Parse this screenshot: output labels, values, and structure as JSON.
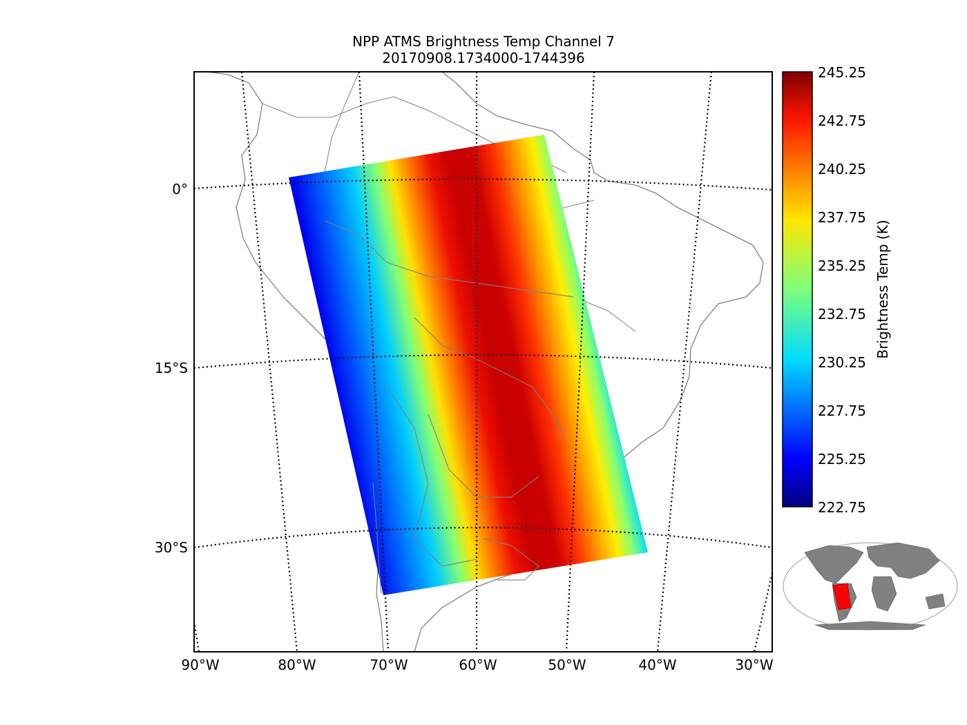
{
  "title": "NPP ATMS Brightness Temp Channel 7",
  "subtitle": "20170908.1734000-1744396",
  "map": {
    "lon_labels": [
      "90°W",
      "80°W",
      "70°W",
      "60°W",
      "50°W",
      "40°W",
      "30°W"
    ],
    "lat_labels": [
      "0°",
      "15°S",
      "30°S"
    ],
    "coastline_color": "#808080",
    "grid_style": "dotted"
  },
  "colorbar": {
    "label": "Brightness Temp (K)",
    "ticks": [
      "245.25",
      "242.75",
      "240.25",
      "237.75",
      "235.25",
      "232.75",
      "230.25",
      "227.75",
      "225.25",
      "222.75"
    ],
    "min": 222.75,
    "max": 245.25,
    "colormap": "jet"
  },
  "swath": {
    "description_values": {
      "edge_temp_k": 224.0,
      "center_temp_k": 244.5
    }
  },
  "inset": {
    "land_color": "#808080",
    "highlight_color": "#ff0000"
  }
}
